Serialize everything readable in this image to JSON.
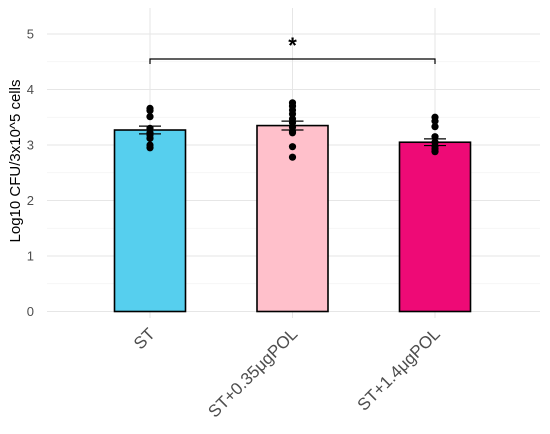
{
  "chart_data": {
    "type": "bar",
    "title": "",
    "xlabel": "",
    "ylabel": "Log10 CFU/3x10^5 cells",
    "ylim": [
      0,
      5.4
    ],
    "yticks": [
      0,
      1,
      2,
      3,
      4,
      5
    ],
    "grid": true,
    "legend": "none",
    "categories": [
      "ST",
      "ST+0.35μgPOL",
      "ST+1.4μgPOL"
    ],
    "values": [
      3.27,
      3.35,
      3.05
    ],
    "error": [
      0.07,
      0.08,
      0.06
    ],
    "colors": [
      "#56CFEE",
      "#FFC0CB",
      "#EE0A76"
    ],
    "points": [
      [
        3.66,
        3.62,
        3.51,
        3.3,
        3.22,
        3.18,
        3.12,
        3.0,
        2.95
      ],
      [
        3.76,
        3.7,
        3.63,
        3.56,
        3.47,
        3.4,
        3.32,
        3.25,
        3.22,
        2.97,
        2.78
      ],
      [
        3.5,
        3.43,
        3.33,
        3.15,
        3.05,
        2.98,
        2.93,
        2.88
      ]
    ],
    "annotations": [
      {
        "text": "*",
        "from_category": 0,
        "to_category": 2,
        "y": 4.55
      }
    ]
  }
}
